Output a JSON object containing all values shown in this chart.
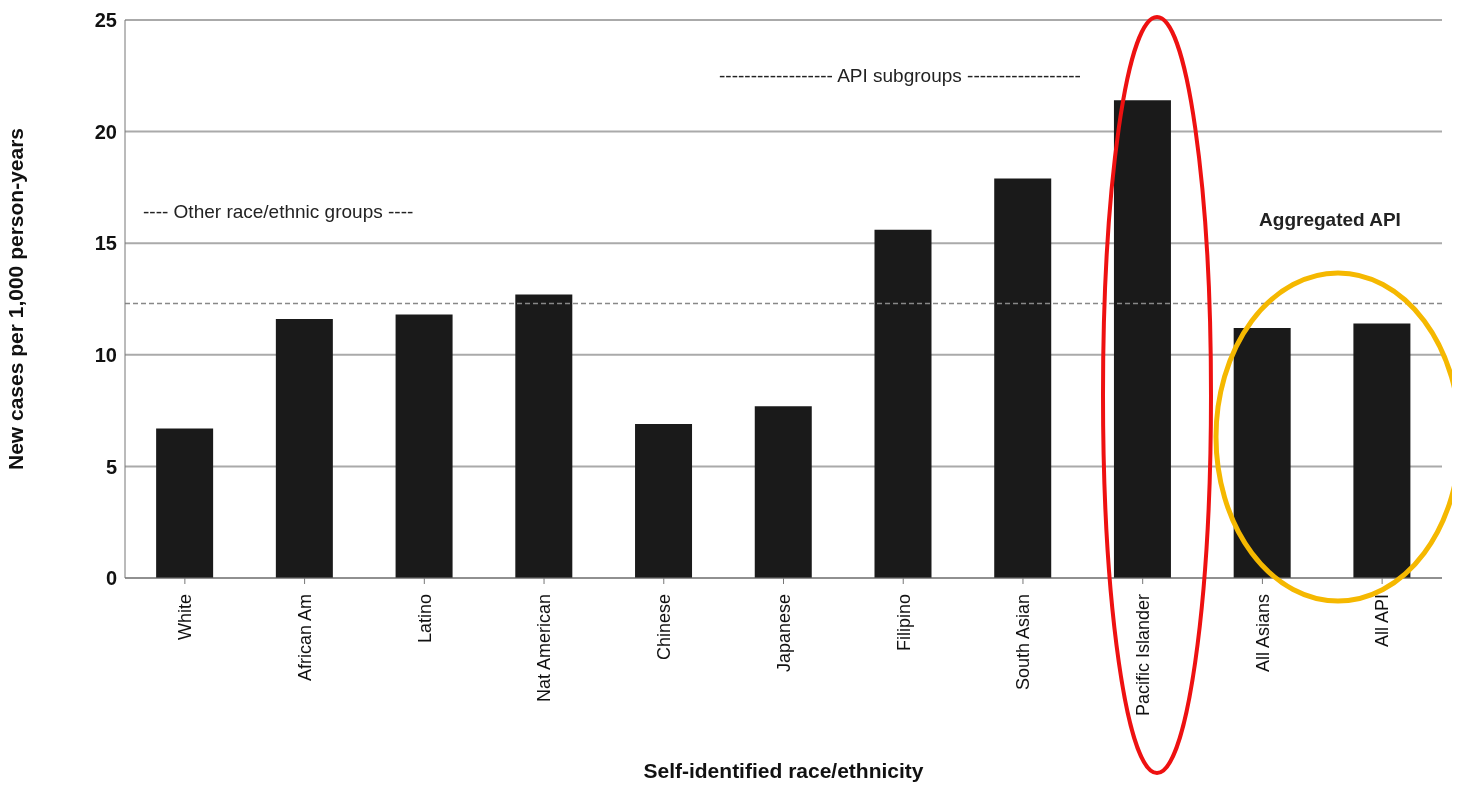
{
  "chart_data": {
    "type": "bar",
    "xlabel": "Self-identified race/ethnicity",
    "ylabel": "New cases per 1,000 person-years",
    "categories": [
      "White",
      "African Am",
      "Latino",
      "Nat American",
      "Chinese",
      "Japanese",
      "Filipino",
      "South Asian",
      "Pacific Islander",
      "All Asians",
      "All API"
    ],
    "values": [
      6.7,
      11.6,
      11.8,
      12.7,
      6.9,
      7.7,
      15.6,
      17.9,
      21.4,
      11.2,
      11.4
    ],
    "color": "#1a1a1a",
    "ylim": [
      0,
      25
    ],
    "yticks": [
      0,
      5,
      10,
      15,
      20,
      25
    ],
    "grid": "y",
    "ref_lines": [
      {
        "axis": "y",
        "value": 12.3,
        "color": "#888888",
        "line_style": "dashed"
      }
    ],
    "annotations": [
      "---- Other race/ethnic groups ----",
      "------------------ API subgroups ------------------",
      "Aggregated API"
    ]
  }
}
